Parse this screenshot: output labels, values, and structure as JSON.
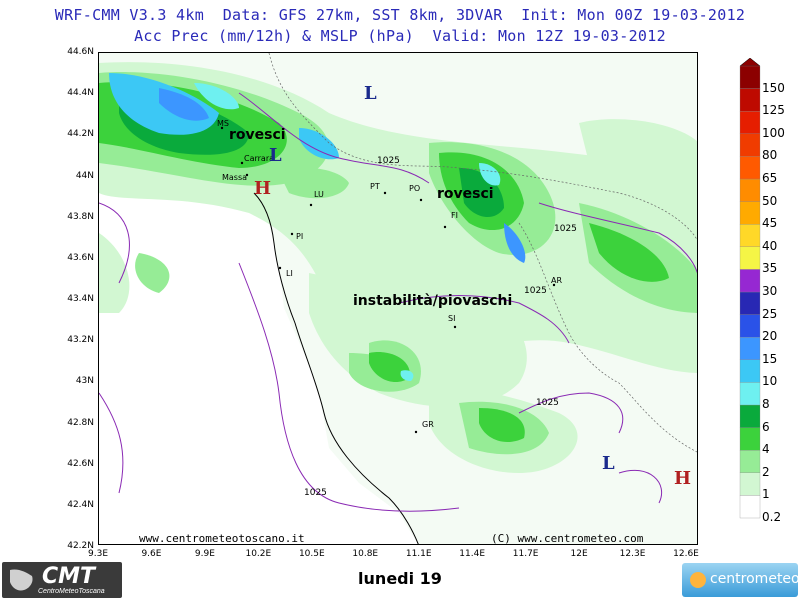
{
  "header": {
    "line1": "WRF-CMM V3.3 4km  Data: GFS 27km, SST 8km, 3DVAR  Init: Mon 00Z 19-03-2012",
    "line2": "Acc Prec (mm/12h) & MSLP (hPa)  Valid: Mon 12Z 19-03-2012"
  },
  "axes": {
    "lat_ticks": [
      "44.6N",
      "44.4N",
      "44.2N",
      "44N",
      "43.8N",
      "43.6N",
      "43.4N",
      "43.2N",
      "43N",
      "42.8N",
      "42.6N",
      "42.4N",
      "42.2N"
    ],
    "lon_ticks": [
      "9.3E",
      "9.6E",
      "9.9E",
      "10.2E",
      "10.5E",
      "10.8E",
      "11.1E",
      "11.4E",
      "11.7E",
      "12E",
      "12.3E",
      "12.6E"
    ]
  },
  "colorbar": {
    "unit": "mm/12h",
    "levels": [
      "0.2",
      "1",
      "2",
      "4",
      "6",
      "8",
      "10",
      "15",
      "20",
      "25",
      "30",
      "35",
      "40",
      "45",
      "50",
      "65",
      "80",
      "100",
      "125",
      "150"
    ],
    "colors": [
      "#ffffff",
      "#d2f7d2",
      "#96ec96",
      "#3cd23c",
      "#0aaa3c",
      "#6ef0f0",
      "#3cc8f5",
      "#3c96ff",
      "#2a52e8",
      "#2828b4",
      "#9628d2",
      "#f5f546",
      "#ffd828",
      "#ffaa00",
      "#ff8c00",
      "#ff5a00",
      "#f03c00",
      "#e61e00",
      "#be0a00",
      "#8c0000"
    ]
  },
  "map_labels": {
    "rovesci_1": "rovesci",
    "rovesci_2": "rovesci",
    "instabilita": "instabilità/piovaschi"
  },
  "cities": [
    {
      "code": "MS"
    },
    {
      "code": "Carrara"
    },
    {
      "code": "Massa"
    },
    {
      "code": "LU"
    },
    {
      "code": "PT"
    },
    {
      "code": "PO"
    },
    {
      "code": "FI"
    },
    {
      "code": "PI"
    },
    {
      "code": "LI"
    },
    {
      "code": "SI"
    },
    {
      "code": "AR"
    },
    {
      "code": "GR"
    }
  ],
  "isobars": [
    "1025",
    "1025",
    "1025",
    "1025",
    "1025"
  ],
  "pressure_centers": [
    {
      "type": "L",
      "color": "#1a2a8c"
    },
    {
      "type": "L",
      "color": "#1a2a8c"
    },
    {
      "type": "L",
      "color": "#1a2a8c"
    },
    {
      "type": "H",
      "color": "#b02020"
    },
    {
      "type": "H",
      "color": "#b02020"
    }
  ],
  "watermarks": {
    "left": "www.centrometeotoscano.it",
    "right": "(C) www.centrometeo.com"
  },
  "footer": {
    "title": "lunedi 19",
    "logo_left": "CMT",
    "logo_left_sub": "CentroMeteoToscana",
    "logo_right": "centrometeo"
  }
}
